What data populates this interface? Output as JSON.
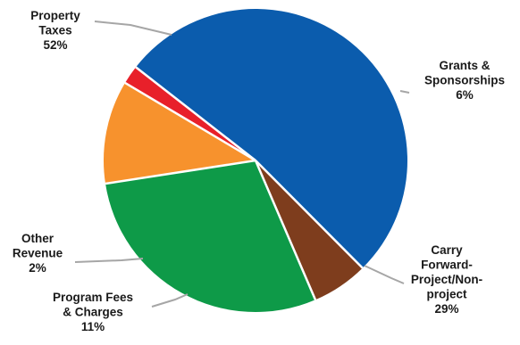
{
  "chart_data": {
    "type": "pie",
    "title": "",
    "slices": [
      {
        "name": "Property Taxes",
        "value": 52,
        "label_lines": [
          "Property",
          "Taxes",
          "52%"
        ],
        "color": "#0b5cad"
      },
      {
        "name": "Grants & Sponsorships",
        "value": 6,
        "label_lines": [
          "Grants &",
          "Sponsorships",
          "6%"
        ],
        "color": "#7e3d1d"
      },
      {
        "name": "Carry Forward-Project/Non-project",
        "value": 29,
        "label_lines": [
          "Carry",
          "Forward-",
          "Project/Non-",
          "project",
          "29%"
        ],
        "color": "#0e9a48"
      },
      {
        "name": "Program Fees & Charges",
        "value": 11,
        "label_lines": [
          "Program Fees",
          "& Charges",
          "11%"
        ],
        "color": "#f7922d"
      },
      {
        "name": "Other Revenue",
        "value": 2,
        "label_lines": [
          "Other",
          "Revenue",
          "2%"
        ],
        "color": "#e8202a"
      }
    ],
    "legend": "none",
    "data_labels": "outside with leader lines"
  }
}
